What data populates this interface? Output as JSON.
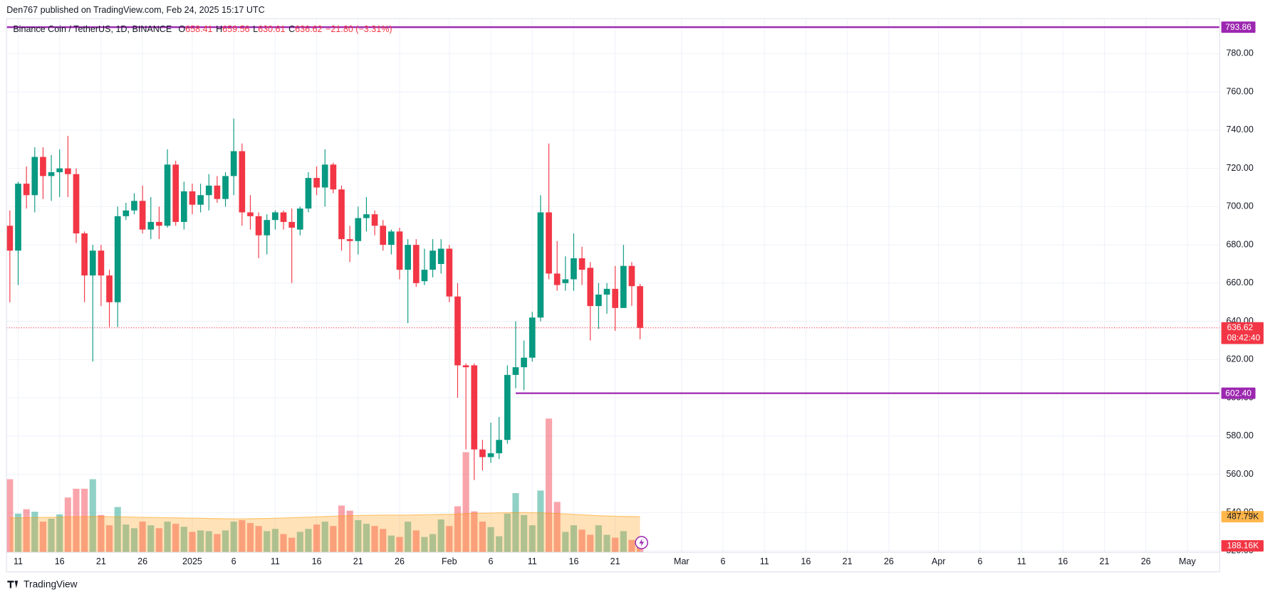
{
  "header": {
    "published": "Den767 published on TradingView.com, Feb 24, 2025 15:17 UTC"
  },
  "footer": {
    "brand": "TradingView"
  },
  "chart_data": {
    "type": "candlestick",
    "symbol": "Binance Coin / TetherUS, 1D, BINANCE",
    "legend": [
      {
        "label": "O",
        "value": 658.41
      },
      {
        "label": "H",
        "value": 659.56
      },
      {
        "label": "L",
        "value": 630.61
      },
      {
        "label": "C",
        "value": 636.62
      }
    ],
    "change": "−21.80 (−3.31%)",
    "up_color": "#089981",
    "down_color": "#f23645",
    "open": [
      690,
      677,
      712,
      706,
      726,
      716,
      718,
      720,
      717,
      686,
      664,
      677,
      664,
      650,
      695,
      698,
      703,
      688,
      692,
      690,
      722,
      692,
      708,
      701,
      706,
      711,
      704,
      716,
      729,
      697,
      695,
      685,
      693,
      697,
      692,
      688,
      699,
      715,
      710,
      722,
      709,
      683,
      682,
      694,
      696,
      690,
      680,
      687,
      667,
      680,
      661,
      667,
      670,
      678,
      653,
      617,
      617,
      573,
      569,
      571,
      578,
      612,
      616,
      621,
      642,
      697,
      665,
      660,
      662,
      673,
      668,
      648,
      654,
      657,
      647,
      669,
      658.41
    ],
    "high": [
      698,
      713,
      721,
      731,
      731,
      727,
      730,
      737,
      720,
      687,
      680,
      680,
      667,
      700,
      702,
      707,
      711,
      705,
      700,
      730,
      724,
      713,
      712,
      712,
      717,
      716,
      718,
      746,
      733,
      706,
      697,
      696,
      698,
      698,
      699,
      700,
      718,
      721,
      730,
      723,
      711,
      690,
      700,
      705,
      698,
      693,
      688,
      689,
      683,
      683,
      678,
      683,
      683,
      680,
      660,
      618,
      618,
      578,
      587,
      590,
      617,
      640,
      630,
      645,
      706,
      733,
      682,
      674,
      686,
      679,
      671,
      660,
      660,
      669,
      680,
      671,
      659.56
    ],
    "low": [
      650,
      659,
      699,
      697,
      704,
      703,
      705,
      705,
      681,
      650,
      619,
      648,
      637,
      637,
      693,
      696,
      686,
      683,
      683,
      689,
      690,
      688,
      696,
      697,
      698,
      702,
      700,
      706,
      690,
      688,
      673,
      675,
      688,
      688,
      660,
      685,
      697,
      706,
      700,
      707,
      677,
      671,
      675,
      687,
      685,
      677,
      675,
      662,
      639,
      658,
      659,
      663,
      665,
      650,
      600,
      573,
      557,
      562,
      566,
      568,
      576,
      605,
      604,
      619,
      640,
      662,
      656,
      656,
      656,
      659,
      630,
      636,
      644,
      635,
      647,
      648,
      630.61
    ],
    "close": [
      677,
      712,
      706,
      726,
      716,
      718,
      720,
      717,
      686,
      664,
      677,
      664,
      650,
      695,
      698,
      703,
      688,
      692,
      690,
      722,
      692,
      708,
      701,
      706,
      711,
      704,
      716,
      729,
      697,
      695,
      685,
      693,
      697,
      692,
      689,
      699,
      715,
      710,
      722,
      709,
      683,
      682,
      694,
      696,
      690,
      680,
      687,
      667,
      680,
      660,
      667,
      677,
      678,
      653,
      617,
      616,
      573,
      569,
      571,
      578,
      612,
      616,
      621,
      642,
      697,
      665,
      659,
      662,
      673,
      667,
      648,
      654,
      657,
      647,
      669,
      658.41,
      636.62
    ],
    "volume": {
      "values": [
        1000,
        530,
        590,
        555,
        420,
        460,
        520,
        750,
        870,
        870,
        1000,
        510,
        370,
        620,
        380,
        330,
        420,
        370,
        330,
        420,
        390,
        350,
        280,
        300,
        290,
        250,
        300,
        420,
        440,
        400,
        360,
        290,
        320,
        250,
        200,
        280,
        320,
        380,
        420,
        360,
        640,
        570,
        440,
        390,
        360,
        320,
        230,
        210,
        420,
        300,
        210,
        250,
        450,
        360,
        630,
        1370,
        560,
        420,
        345,
        220,
        530,
        810,
        510,
        370,
        845,
        1830,
        690,
        280,
        370,
        310,
        240,
        370,
        240,
        200,
        290,
        170,
        188.16
      ],
      "last_label": "188.16K",
      "ylim": [
        0,
        3000
      ],
      "ma": {
        "values": [
          470,
          472,
          474,
          476,
          478,
          480,
          482,
          484,
          486,
          488,
          490,
          490,
          488,
          486,
          484,
          482,
          480,
          478,
          476,
          474,
          472,
          470,
          468,
          466,
          464,
          462,
          460,
          458,
          458,
          460,
          462,
          464,
          466,
          470,
          474,
          478,
          482,
          486,
          490,
          494,
          498,
          502,
          504,
          506,
          508,
          510,
          510,
          510,
          510,
          512,
          514,
          516,
          518,
          520,
          524,
          530,
          534,
          536,
          538,
          540,
          542,
          544,
          544,
          542,
          540,
          536,
          532,
          526,
          520,
          514,
          508,
          502,
          498,
          494,
          492,
          490,
          487.79
        ],
        "last": {
          "value": 487.79,
          "label": "487.79K"
        },
        "color": "#ff9800"
      }
    },
    "last": {
      "value": 636.62,
      "countdown": "08:42:40",
      "color": "#f23645"
    },
    "lines": [
      {
        "value": 793.86,
        "color": "#9c27b0"
      },
      {
        "value": 602.4,
        "label": "602.40",
        "from": 61,
        "color": "#9c27b0"
      }
    ],
    "xlim": [
      -0.4,
      145.9
    ],
    "xticks": [
      {
        "value": 1,
        "label": "11"
      },
      {
        "value": 6,
        "label": "16"
      },
      {
        "value": 11,
        "label": "21"
      },
      {
        "value": 16,
        "label": "26"
      },
      {
        "value": 22,
        "label": "2025"
      },
      {
        "value": 27,
        "label": "6"
      },
      {
        "value": 32,
        "label": "11"
      },
      {
        "value": 37,
        "label": "16"
      },
      {
        "value": 42,
        "label": "21"
      },
      {
        "value": 47,
        "label": "26"
      },
      {
        "value": 53,
        "label": "Feb"
      },
      {
        "value": 58,
        "label": "6"
      },
      {
        "value": 63,
        "label": "11"
      },
      {
        "value": 68,
        "label": "16"
      },
      {
        "value": 73,
        "label": "21"
      },
      {
        "value": 81,
        "label": "Mar"
      },
      {
        "value": 86,
        "label": "6"
      },
      {
        "value": 91,
        "label": "11"
      },
      {
        "value": 96,
        "label": "16"
      },
      {
        "value": 101,
        "label": "21"
      },
      {
        "value": 106,
        "label": "26"
      },
      {
        "value": 112,
        "label": "Apr"
      },
      {
        "value": 117,
        "label": "6"
      },
      {
        "value": 122,
        "label": "11"
      },
      {
        "value": 127,
        "label": "16"
      },
      {
        "value": 132,
        "label": "21"
      },
      {
        "value": 137,
        "label": "26"
      },
      {
        "value": 142,
        "label": "May"
      }
    ],
    "ylim": [
      519.2,
      798.3
    ],
    "yticks": [
      {
        "value": 520,
        "label": "520.00"
      },
      {
        "value": 540,
        "label": "540.00"
      },
      {
        "value": 560,
        "label": "560.00"
      },
      {
        "value": 580,
        "label": "580.00"
      },
      {
        "value": 600,
        "label": "600.00"
      },
      {
        "value": 620,
        "label": "620.00"
      },
      {
        "value": 640,
        "label": "640.00"
      },
      {
        "value": 660,
        "label": "660.00"
      },
      {
        "value": 680,
        "label": "680.00"
      },
      {
        "value": 700,
        "label": "700.00"
      },
      {
        "value": 720,
        "label": "720.00"
      },
      {
        "value": 740,
        "label": "740.00"
      },
      {
        "value": 760,
        "label": "760.00"
      },
      {
        "value": 780,
        "label": "780.00"
      }
    ],
    "grid": true
  }
}
